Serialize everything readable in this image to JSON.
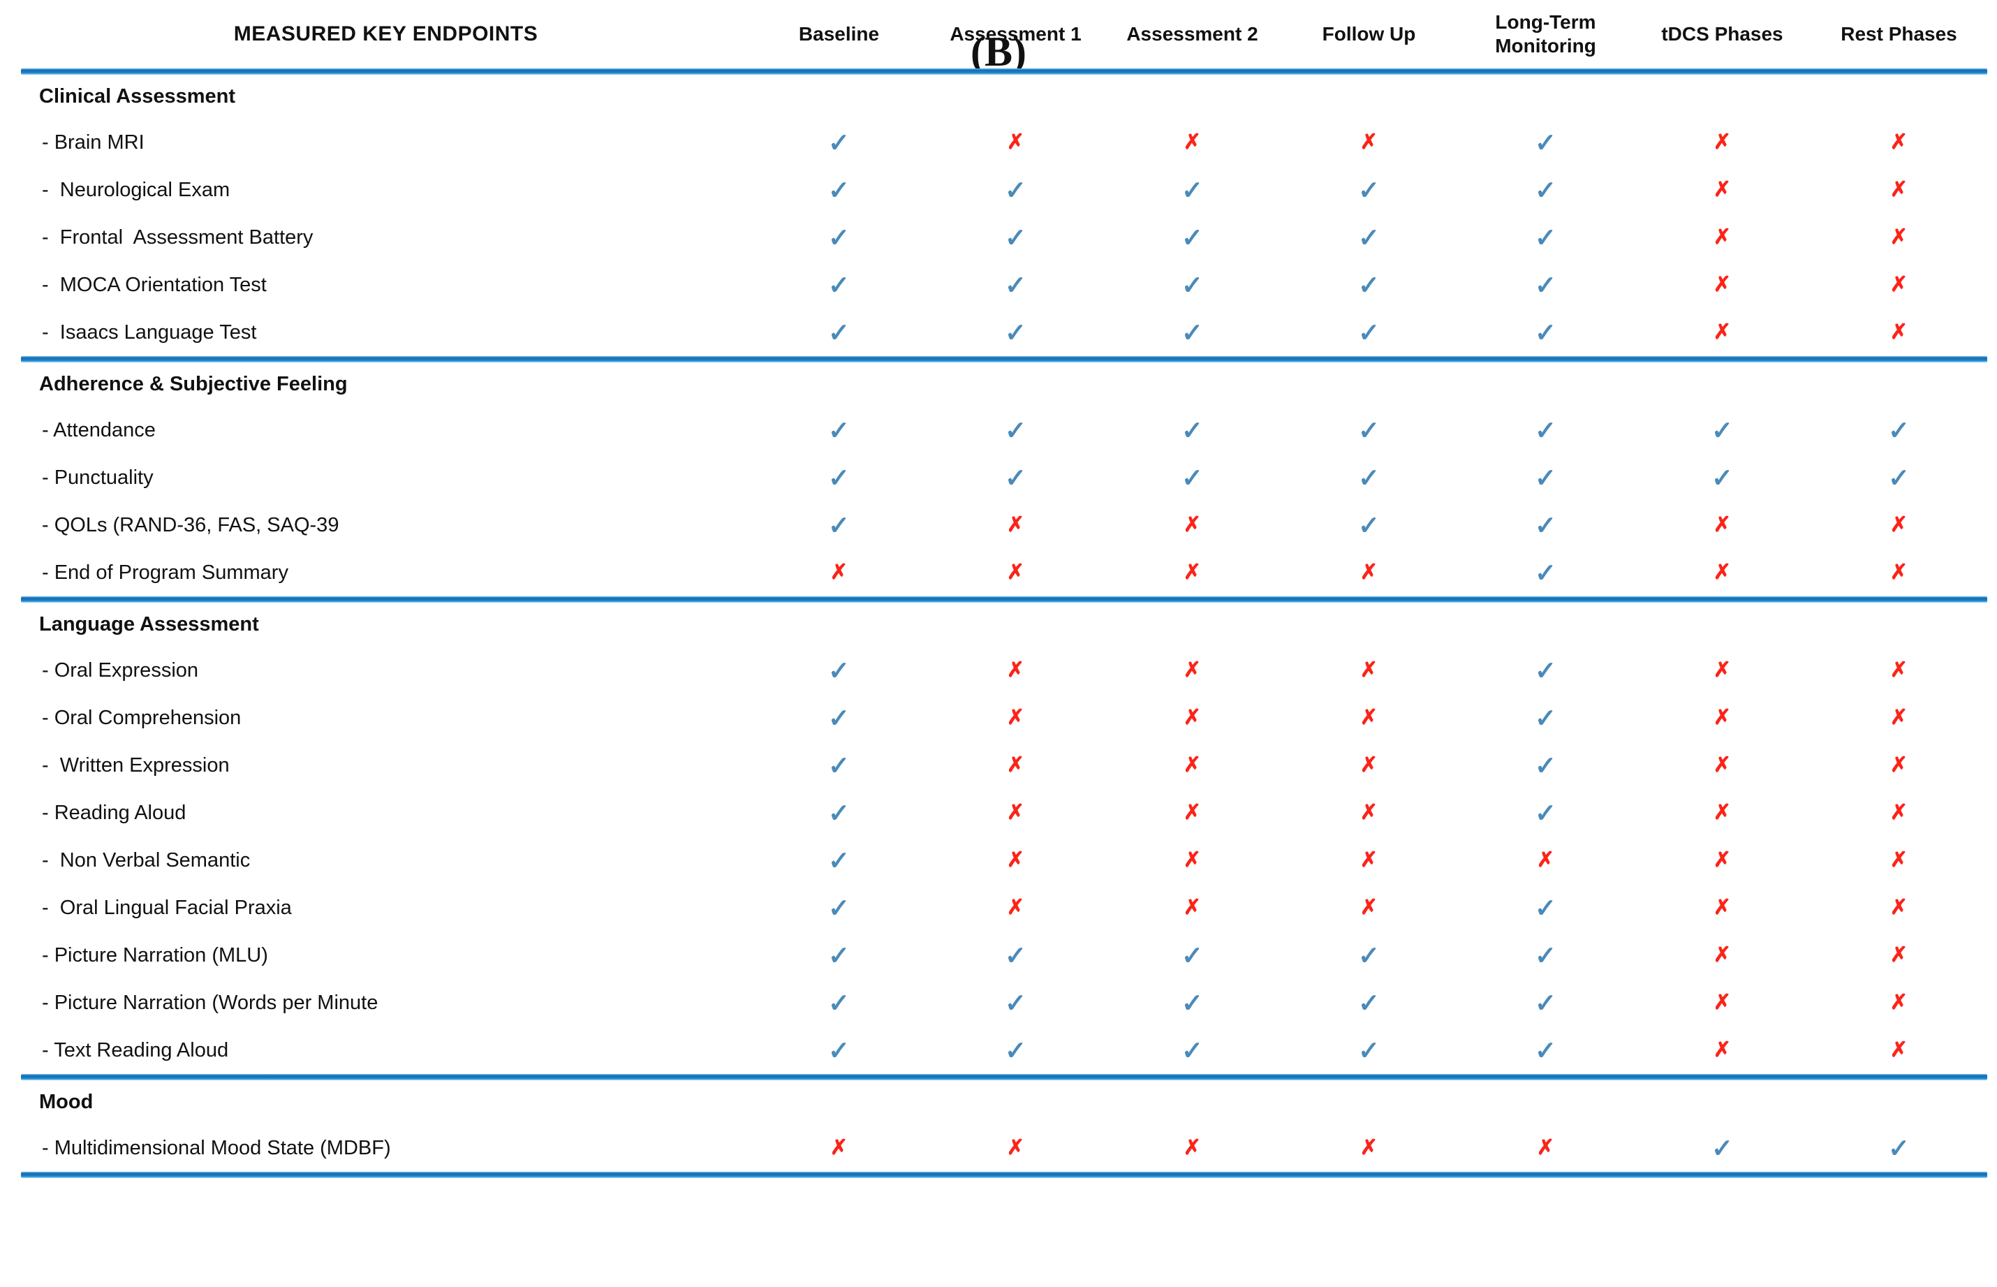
{
  "figure_label": "(B)",
  "table": {
    "glyphs": {
      "check": "✓",
      "cross": "✗"
    },
    "colors": {
      "check": "#4a8ab9",
      "cross": "#fb2418",
      "divider_blue": "#0d6cb4"
    },
    "header": {
      "endpoint_column": "MEASURED KEY ENDPOINTS",
      "columns": [
        "Baseline",
        "Assessment 1",
        "Assessment 2",
        "Follow Up",
        "Long-Term Monitoring",
        "tDCS Phases",
        "Rest Phases"
      ]
    },
    "sections": [
      {
        "title": "Clinical Assessment",
        "rows": [
          {
            "label": "- Brain MRI",
            "marks": [
              "check",
              "cross",
              "cross",
              "cross",
              "check",
              "cross",
              "cross"
            ]
          },
          {
            "label": "-  Neurological Exam",
            "marks": [
              "check",
              "check",
              "check",
              "check",
              "check",
              "cross",
              "cross"
            ]
          },
          {
            "label": "-  Frontal  Assessment Battery",
            "marks": [
              "check",
              "check",
              "check",
              "check",
              "check",
              "cross",
              "cross"
            ]
          },
          {
            "label": "-  MOCA Orientation Test",
            "marks": [
              "check",
              "check",
              "check",
              "check",
              "check",
              "cross",
              "cross"
            ]
          },
          {
            "label": "-  Isaacs Language Test",
            "marks": [
              "check",
              "check",
              "check",
              "check",
              "check",
              "cross",
              "cross"
            ]
          }
        ]
      },
      {
        "title": "Adherence & Subjective Feeling",
        "rows": [
          {
            "label": "- Attendance",
            "marks": [
              "check",
              "check",
              "check",
              "check",
              "check",
              "check",
              "check"
            ]
          },
          {
            "label": "- Punctuality",
            "marks": [
              "check",
              "check",
              "check",
              "check",
              "check",
              "check",
              "check"
            ]
          },
          {
            "label": "- QOLs (RAND-36, FAS, SAQ-39",
            "marks": [
              "check",
              "cross",
              "cross",
              "check",
              "check",
              "cross",
              "cross"
            ]
          },
          {
            "label": "- End of Program Summary",
            "marks": [
              "cross",
              "cross",
              "cross",
              "cross",
              "check",
              "cross",
              "cross"
            ]
          }
        ]
      },
      {
        "title": "Language Assessment",
        "rows": [
          {
            "label": "- Oral Expression",
            "marks": [
              "check",
              "cross",
              "cross",
              "cross",
              "check",
              "cross",
              "cross"
            ]
          },
          {
            "label": "- Oral Comprehension",
            "marks": [
              "check",
              "cross",
              "cross",
              "cross",
              "check",
              "cross",
              "cross"
            ]
          },
          {
            "label": "-  Written Expression",
            "marks": [
              "check",
              "cross",
              "cross",
              "cross",
              "check",
              "cross",
              "cross"
            ]
          },
          {
            "label": "- Reading Aloud",
            "marks": [
              "check",
              "cross",
              "cross",
              "cross",
              "check",
              "cross",
              "cross"
            ]
          },
          {
            "label": "-  Non Verbal Semantic",
            "marks": [
              "check",
              "cross",
              "cross",
              "cross",
              "cross",
              "cross",
              "cross"
            ]
          },
          {
            "label": "-  Oral Lingual Facial Praxia",
            "marks": [
              "check",
              "cross",
              "cross",
              "cross",
              "check",
              "cross",
              "cross"
            ]
          },
          {
            "label": "- Picture Narration (MLU)",
            "marks": [
              "check",
              "check",
              "check",
              "check",
              "check",
              "cross",
              "cross"
            ]
          },
          {
            "label": "- Picture Narration (Words per Minute",
            "marks": [
              "check",
              "check",
              "check",
              "check",
              "check",
              "cross",
              "cross"
            ]
          },
          {
            "label": "- Text Reading Aloud",
            "marks": [
              "check",
              "check",
              "check",
              "check",
              "check",
              "cross",
              "cross"
            ]
          }
        ]
      },
      {
        "title": "Mood",
        "rows": [
          {
            "label": "- Multidimensional Mood State (MDBF)",
            "marks": [
              "cross",
              "cross",
              "cross",
              "cross",
              "cross",
              "check",
              "check"
            ]
          }
        ]
      }
    ]
  }
}
